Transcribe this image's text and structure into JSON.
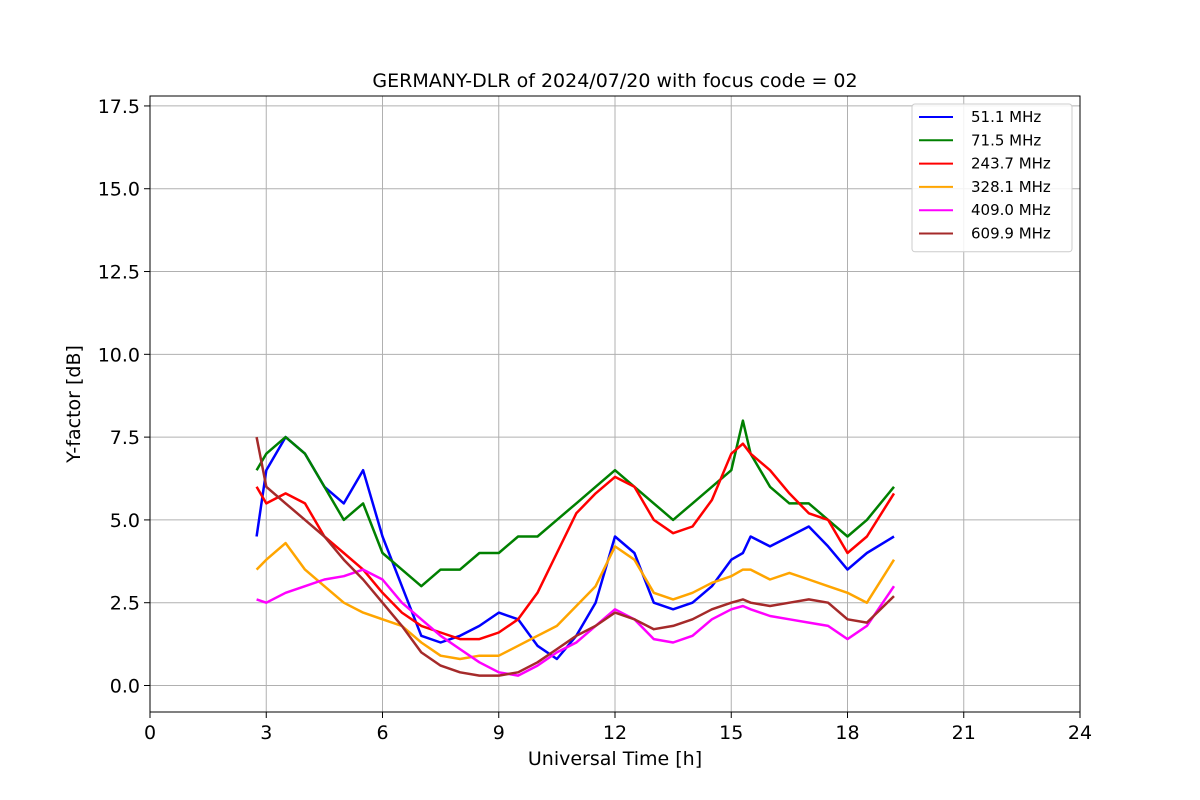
{
  "chart_data": {
    "type": "line",
    "title": "GERMANY-DLR of 2024/07/20 with focus code = 02",
    "xlabel": "Universal Time [h]",
    "ylabel": "Y-factor [dB]",
    "xlim": [
      0,
      24
    ],
    "ylim": [
      -0.8,
      17.8
    ],
    "xticks": [
      0,
      3,
      6,
      9,
      12,
      15,
      18,
      21,
      24
    ],
    "xtick_labels": [
      "0",
      "3",
      "6",
      "9",
      "12",
      "15",
      "18",
      "21",
      "24"
    ],
    "yticks": [
      0.0,
      2.5,
      5.0,
      7.5,
      10.0,
      12.5,
      15.0,
      17.5
    ],
    "ytick_labels": [
      "0.0",
      "2.5",
      "5.0",
      "7.5",
      "10.0",
      "12.5",
      "15.0",
      "17.5"
    ],
    "grid": true,
    "legend_position": "top-right",
    "series": [
      {
        "name": " 51.1 MHz",
        "color": "#0000ff",
        "x": [
          2.75,
          3.0,
          3.5,
          4.0,
          4.5,
          5.0,
          5.5,
          6.0,
          6.5,
          7.0,
          7.5,
          8.0,
          8.5,
          9.0,
          9.5,
          10.0,
          10.5,
          11.0,
          11.5,
          12.0,
          12.5,
          13.0,
          13.5,
          14.0,
          14.5,
          15.0,
          15.3,
          15.5,
          16.0,
          16.5,
          17.0,
          17.5,
          18.0,
          18.5,
          19.2
        ],
        "y": [
          4.5,
          6.5,
          7.5,
          7.0,
          6.0,
          5.5,
          6.5,
          4.5,
          3.0,
          1.5,
          1.3,
          1.5,
          1.8,
          2.2,
          2.0,
          1.2,
          0.8,
          1.5,
          2.5,
          4.5,
          4.0,
          2.5,
          2.3,
          2.5,
          3.0,
          3.8,
          4.0,
          4.5,
          4.2,
          4.5,
          4.8,
          4.2,
          3.5,
          4.0,
          4.5
        ]
      },
      {
        "name": " 71.5 MHz",
        "color": "#008000",
        "x": [
          2.75,
          3.0,
          3.5,
          4.0,
          4.5,
          5.0,
          5.5,
          6.0,
          6.5,
          7.0,
          7.5,
          8.0,
          8.5,
          9.0,
          9.5,
          10.0,
          10.5,
          11.0,
          11.5,
          12.0,
          12.5,
          13.0,
          13.5,
          14.0,
          14.5,
          15.0,
          15.3,
          15.5,
          16.0,
          16.5,
          17.0,
          17.5,
          18.0,
          18.5,
          19.2
        ],
        "y": [
          6.5,
          7.0,
          7.5,
          7.0,
          6.0,
          5.0,
          5.5,
          4.0,
          3.5,
          3.0,
          3.5,
          3.5,
          4.0,
          4.0,
          4.5,
          4.5,
          5.0,
          5.5,
          6.0,
          6.5,
          6.0,
          5.5,
          5.0,
          5.5,
          6.0,
          6.5,
          8.0,
          7.0,
          6.0,
          5.5,
          5.5,
          5.0,
          4.5,
          5.0,
          6.0
        ]
      },
      {
        "name": "243.7 MHz",
        "color": "#ff0000",
        "x": [
          2.75,
          3.0,
          3.5,
          4.0,
          4.5,
          5.0,
          5.5,
          6.0,
          6.5,
          7.0,
          7.5,
          8.0,
          8.5,
          9.0,
          9.5,
          10.0,
          10.5,
          11.0,
          11.5,
          12.0,
          12.5,
          13.0,
          13.5,
          14.0,
          14.5,
          15.0,
          15.3,
          15.5,
          16.0,
          16.5,
          17.0,
          17.5,
          18.0,
          18.5,
          19.2
        ],
        "y": [
          6.0,
          5.5,
          5.8,
          5.5,
          4.5,
          4.0,
          3.5,
          2.8,
          2.2,
          1.8,
          1.6,
          1.4,
          1.4,
          1.6,
          2.0,
          2.8,
          4.0,
          5.2,
          5.8,
          6.3,
          6.0,
          5.0,
          4.6,
          4.8,
          5.6,
          7.0,
          7.3,
          7.0,
          6.5,
          5.8,
          5.2,
          5.0,
          4.0,
          4.5,
          5.8
        ]
      },
      {
        "name": "328.1 MHz",
        "color": "#ffa500",
        "x": [
          2.75,
          3.0,
          3.5,
          4.0,
          4.5,
          5.0,
          5.5,
          6.0,
          6.5,
          7.0,
          7.5,
          8.0,
          8.5,
          9.0,
          9.5,
          10.0,
          10.5,
          11.0,
          11.5,
          12.0,
          12.5,
          13.0,
          13.5,
          14.0,
          14.5,
          15.0,
          15.3,
          15.5,
          16.0,
          16.5,
          17.0,
          17.5,
          18.0,
          18.5,
          19.2
        ],
        "y": [
          3.5,
          3.8,
          4.3,
          3.5,
          3.0,
          2.5,
          2.2,
          2.0,
          1.8,
          1.3,
          0.9,
          0.8,
          0.9,
          0.9,
          1.2,
          1.5,
          1.8,
          2.4,
          3.0,
          4.2,
          3.8,
          2.8,
          2.6,
          2.8,
          3.1,
          3.3,
          3.5,
          3.5,
          3.2,
          3.4,
          3.2,
          3.0,
          2.8,
          2.5,
          3.8
        ]
      },
      {
        "name": "409.0 MHz",
        "color": "#ff00ff",
        "x": [
          2.75,
          3.0,
          3.5,
          4.0,
          4.5,
          5.0,
          5.5,
          6.0,
          6.5,
          7.0,
          7.5,
          8.0,
          8.5,
          9.0,
          9.5,
          10.0,
          10.5,
          11.0,
          11.5,
          12.0,
          12.5,
          13.0,
          13.5,
          14.0,
          14.5,
          15.0,
          15.3,
          15.5,
          16.0,
          16.5,
          17.0,
          17.5,
          18.0,
          18.5,
          19.2
        ],
        "y": [
          2.6,
          2.5,
          2.8,
          3.0,
          3.2,
          3.3,
          3.5,
          3.2,
          2.5,
          2.0,
          1.5,
          1.1,
          0.7,
          0.4,
          0.3,
          0.6,
          1.0,
          1.3,
          1.8,
          2.3,
          2.0,
          1.4,
          1.3,
          1.5,
          2.0,
          2.3,
          2.4,
          2.3,
          2.1,
          2.0,
          1.9,
          1.8,
          1.4,
          1.8,
          3.0
        ]
      },
      {
        "name": "609.9 MHz",
        "color": "#a52a2a",
        "x": [
          2.75,
          3.0,
          3.5,
          4.0,
          4.5,
          5.0,
          5.5,
          6.0,
          6.5,
          7.0,
          7.5,
          8.0,
          8.5,
          9.0,
          9.5,
          10.0,
          10.5,
          11.0,
          11.5,
          12.0,
          12.5,
          13.0,
          13.5,
          14.0,
          14.5,
          15.0,
          15.3,
          15.5,
          16.0,
          16.5,
          17.0,
          17.5,
          18.0,
          18.5,
          19.2
        ],
        "y": [
          7.5,
          6.0,
          5.5,
          5.0,
          4.5,
          3.8,
          3.2,
          2.5,
          1.8,
          1.0,
          0.6,
          0.4,
          0.3,
          0.3,
          0.4,
          0.7,
          1.1,
          1.5,
          1.8,
          2.2,
          2.0,
          1.7,
          1.8,
          2.0,
          2.3,
          2.5,
          2.6,
          2.5,
          2.4,
          2.5,
          2.6,
          2.5,
          2.0,
          1.9,
          2.7
        ]
      }
    ]
  }
}
